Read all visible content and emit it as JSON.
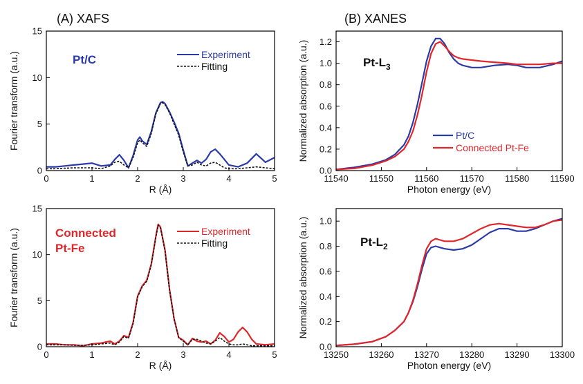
{
  "panel_titles": {
    "left": "(A) XAFS",
    "right": "(B) XANES"
  },
  "colors": {
    "blue": "#2a3aa8",
    "red": "#e0262a",
    "fit": "#111111"
  },
  "chart_data": [
    {
      "type": "line",
      "id": "xafs-ptc",
      "xlabel": "R (Å)",
      "ylabel": "Fourier transform (a.u.)",
      "xlim": [
        0,
        5
      ],
      "ylim": [
        0,
        15
      ],
      "xticks": [
        0,
        1,
        2,
        3,
        4,
        5
      ],
      "yticks": [
        0,
        5,
        10,
        15
      ],
      "sample_label": "Pt/C",
      "sample_color": "#2a3aa8",
      "legend": [
        "Experiment",
        "Fitting"
      ],
      "series": [
        {
          "name": "Experiment",
          "color": "#2a3aa8",
          "style": "solid",
          "x": [
            0,
            0.2,
            0.4,
            0.6,
            0.8,
            1.0,
            1.2,
            1.4,
            1.5,
            1.6,
            1.7,
            1.8,
            1.9,
            2.0,
            2.05,
            2.1,
            2.2,
            2.3,
            2.4,
            2.5,
            2.55,
            2.6,
            2.7,
            2.8,
            2.9,
            3.0,
            3.1,
            3.2,
            3.3,
            3.4,
            3.5,
            3.6,
            3.7,
            3.8,
            3.9,
            4.0,
            4.2,
            4.4,
            4.6,
            4.8,
            5.0
          ],
          "y": [
            0.4,
            0.4,
            0.5,
            0.6,
            0.7,
            0.8,
            0.5,
            0.6,
            1.2,
            1.7,
            1.1,
            0.3,
            1.6,
            3.3,
            3.6,
            3.2,
            2.8,
            4.2,
            6.2,
            7.3,
            7.4,
            7.2,
            6.3,
            5.2,
            4.0,
            2.2,
            0.5,
            0.8,
            1.1,
            0.8,
            1.2,
            2.0,
            2.3,
            1.8,
            1.2,
            0.6,
            0.4,
            0.8,
            1.8,
            0.9,
            1.4
          ]
        },
        {
          "name": "Fitting",
          "color": "#111111",
          "style": "dashed",
          "x": [
            0,
            0.2,
            0.4,
            0.6,
            0.8,
            1.0,
            1.2,
            1.4,
            1.5,
            1.6,
            1.7,
            1.8,
            1.9,
            2.0,
            2.05,
            2.1,
            2.2,
            2.3,
            2.4,
            2.5,
            2.55,
            2.6,
            2.7,
            2.8,
            2.9,
            3.0,
            3.1,
            3.2,
            3.3,
            3.4,
            3.5,
            3.6,
            3.7,
            3.8,
            3.9,
            4.0,
            4.2,
            4.4,
            4.6,
            4.8,
            5.0
          ],
          "y": [
            0.2,
            0.2,
            0.25,
            0.3,
            0.3,
            0.3,
            0.2,
            0.5,
            0.9,
            1.0,
            0.6,
            0.3,
            1.4,
            3.0,
            3.3,
            3.0,
            2.6,
            4.0,
            6.1,
            7.2,
            7.3,
            7.1,
            6.2,
            5.0,
            3.8,
            2.0,
            0.5,
            0.6,
            0.9,
            0.6,
            0.5,
            0.8,
            0.9,
            0.6,
            0.3,
            0.2,
            0.2,
            0.3,
            0.4,
            0.3,
            0.2
          ]
        }
      ]
    },
    {
      "type": "line",
      "id": "xafs-ptfe",
      "xlabel": "R (Å)",
      "ylabel": "Fourier transform (a.u.)",
      "xlim": [
        0,
        5
      ],
      "ylim": [
        0,
        15
      ],
      "xticks": [
        0,
        1,
        2,
        3,
        4,
        5
      ],
      "yticks": [
        0,
        5,
        10,
        15
      ],
      "sample_label": "Connected Pt-Fe",
      "sample_label_lines": [
        "Connected",
        "Pt-Fe"
      ],
      "sample_color": "#e0262a",
      "legend": [
        "Experiment",
        "Fitting"
      ],
      "series": [
        {
          "name": "Experiment",
          "color": "#e0262a",
          "style": "solid",
          "x": [
            0,
            0.2,
            0.4,
            0.6,
            0.8,
            1.0,
            1.2,
            1.4,
            1.5,
            1.6,
            1.7,
            1.8,
            1.9,
            2.0,
            2.1,
            2.2,
            2.3,
            2.4,
            2.45,
            2.5,
            2.6,
            2.7,
            2.8,
            2.9,
            3.0,
            3.1,
            3.2,
            3.3,
            3.4,
            3.5,
            3.6,
            3.7,
            3.8,
            3.9,
            4.0,
            4.1,
            4.2,
            4.3,
            4.4,
            4.5,
            4.6,
            4.8,
            5.0
          ],
          "y": [
            0.3,
            0.3,
            0.2,
            0.2,
            0.1,
            0.3,
            0.4,
            0.6,
            0.3,
            0.6,
            1.2,
            1.0,
            2.6,
            5.5,
            6.6,
            7.2,
            9.0,
            12.0,
            13.3,
            13.0,
            10.5,
            6.2,
            3.0,
            1.0,
            0.7,
            0.2,
            0.9,
            0.6,
            0.5,
            0.6,
            0.3,
            0.7,
            1.5,
            1.1,
            0.5,
            0.8,
            1.6,
            2.1,
            1.6,
            0.8,
            0.3,
            0.2,
            0.3
          ]
        },
        {
          "name": "Fitting",
          "color": "#111111",
          "style": "dashed",
          "x": [
            0,
            0.2,
            0.4,
            0.6,
            0.8,
            1.0,
            1.2,
            1.4,
            1.5,
            1.6,
            1.7,
            1.8,
            1.9,
            2.0,
            2.1,
            2.2,
            2.3,
            2.4,
            2.45,
            2.5,
            2.6,
            2.7,
            2.8,
            2.9,
            3.0,
            3.1,
            3.2,
            3.3,
            3.4,
            3.5,
            3.6,
            3.7,
            3.8,
            3.9,
            4.0,
            4.1,
            4.2,
            4.3,
            4.4,
            4.5,
            4.6,
            4.8,
            5.0
          ],
          "y": [
            0.2,
            0.2,
            0.2,
            0.15,
            0.15,
            0.2,
            0.3,
            0.4,
            0.2,
            0.5,
            1.1,
            0.9,
            2.5,
            5.4,
            6.5,
            7.1,
            8.9,
            11.9,
            13.2,
            12.9,
            10.4,
            6.1,
            3.0,
            1.0,
            0.6,
            0.2,
            0.8,
            0.8,
            0.6,
            0.4,
            0.3,
            0.6,
            1.0,
            0.6,
            0.3,
            0.2,
            0.2,
            0.3,
            0.2,
            0.1,
            0.1,
            0.1,
            0.1
          ]
        }
      ]
    },
    {
      "type": "line",
      "id": "xanes-l3",
      "xlabel": "Photon energy (eV)",
      "ylabel": "Normalized absorption (a.u.)",
      "xlim": [
        11540,
        11590
      ],
      "ylim": [
        0,
        1.3
      ],
      "xticks": [
        11540,
        11550,
        11560,
        11570,
        11580,
        11590
      ],
      "yticks": [
        0.0,
        0.2,
        0.4,
        0.6,
        0.8,
        1.0,
        1.2
      ],
      "edge_label": "Pt-L",
      "edge_subscript": "3",
      "legend": [
        "Pt/C",
        "Connected Pt-Fe"
      ],
      "series": [
        {
          "name": "Pt/C",
          "color": "#2a3aa8",
          "style": "solid",
          "x": [
            11540,
            11544,
            11548,
            11551,
            11553,
            11555,
            11556,
            11557,
            11558,
            11559,
            11560,
            11561,
            11562,
            11563,
            11564,
            11565,
            11566,
            11567,
            11568,
            11570,
            11572,
            11575,
            11578,
            11580,
            11582,
            11585,
            11588,
            11590
          ],
          "y": [
            0.01,
            0.03,
            0.06,
            0.1,
            0.15,
            0.24,
            0.32,
            0.45,
            0.62,
            0.82,
            1.02,
            1.16,
            1.23,
            1.23,
            1.18,
            1.1,
            1.04,
            1.0,
            0.98,
            0.96,
            0.96,
            0.98,
            0.99,
            0.98,
            0.96,
            0.96,
            0.99,
            1.02
          ]
        },
        {
          "name": "Connected Pt-Fe",
          "color": "#e0262a",
          "style": "solid",
          "x": [
            11540,
            11544,
            11548,
            11551,
            11553,
            11555,
            11556,
            11557,
            11558,
            11559,
            11560,
            11561,
            11562,
            11563,
            11564,
            11565,
            11566,
            11567,
            11568,
            11570,
            11572,
            11575,
            11578,
            11580,
            11582,
            11585,
            11588,
            11590
          ],
          "y": [
            0.01,
            0.02,
            0.05,
            0.09,
            0.13,
            0.2,
            0.27,
            0.37,
            0.52,
            0.71,
            0.92,
            1.09,
            1.18,
            1.2,
            1.16,
            1.11,
            1.07,
            1.05,
            1.04,
            1.03,
            1.02,
            1.01,
            1.0,
            0.99,
            0.99,
            0.99,
            1.0,
            1.0
          ]
        }
      ]
    },
    {
      "type": "line",
      "id": "xanes-l2",
      "xlabel": "Photon energy (eV)",
      "ylabel": "Normalized absorption (a.u.)",
      "xlim": [
        13250,
        13300
      ],
      "ylim": [
        0,
        1.1
      ],
      "xticks": [
        13250,
        13260,
        13270,
        13280,
        13290,
        13300
      ],
      "yticks": [
        0.0,
        0.2,
        0.4,
        0.6,
        0.8,
        1.0
      ],
      "edge_label": "Pt-L",
      "edge_subscript": "2",
      "legend": [],
      "series": [
        {
          "name": "Pt/C",
          "color": "#2a3aa8",
          "style": "solid",
          "x": [
            13250,
            13254,
            13258,
            13261,
            13263,
            13265,
            13266,
            13267,
            13268,
            13269,
            13270,
            13271,
            13272,
            13273,
            13274,
            13276,
            13278,
            13280,
            13282,
            13284,
            13286,
            13288,
            13290,
            13292,
            13294,
            13296,
            13298,
            13300
          ],
          "y": [
            0.01,
            0.02,
            0.04,
            0.08,
            0.13,
            0.2,
            0.27,
            0.36,
            0.48,
            0.62,
            0.74,
            0.79,
            0.8,
            0.79,
            0.78,
            0.77,
            0.78,
            0.81,
            0.86,
            0.91,
            0.94,
            0.94,
            0.92,
            0.92,
            0.94,
            0.97,
            1.0,
            1.02
          ]
        },
        {
          "name": "Connected Pt-Fe",
          "color": "#e0262a",
          "style": "solid",
          "x": [
            13250,
            13254,
            13258,
            13261,
            13263,
            13265,
            13266,
            13267,
            13268,
            13269,
            13270,
            13271,
            13272,
            13273,
            13274,
            13276,
            13278,
            13280,
            13282,
            13284,
            13286,
            13288,
            13290,
            13292,
            13294,
            13296,
            13298,
            13300
          ],
          "y": [
            0.01,
            0.02,
            0.04,
            0.08,
            0.13,
            0.2,
            0.27,
            0.37,
            0.5,
            0.65,
            0.78,
            0.84,
            0.86,
            0.85,
            0.84,
            0.84,
            0.86,
            0.9,
            0.94,
            0.97,
            0.98,
            0.97,
            0.96,
            0.95,
            0.95,
            0.97,
            1.0,
            1.01
          ]
        }
      ]
    }
  ]
}
